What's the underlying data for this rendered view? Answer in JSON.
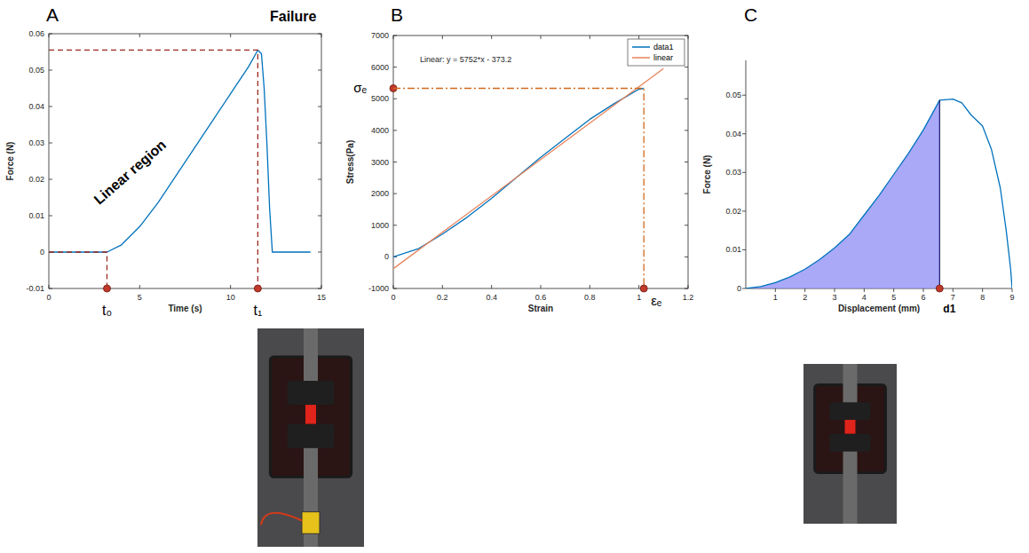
{
  "chart_data": [
    {
      "panel_label": "A",
      "type": "line",
      "x_label": "Time (s)",
      "y_label": "Force (N)",
      "xlim": [
        0,
        15
      ],
      "xticks": [
        0,
        5,
        10,
        15
      ],
      "ylim": [
        -0.01,
        0.06
      ],
      "yticks": [
        -0.01,
        0,
        0.01,
        0.02,
        0.03,
        0.04,
        0.05,
        0.06
      ],
      "series": [
        {
          "color": "#0072bd",
          "x": [
            0,
            3.2,
            4,
            5,
            6,
            7,
            8,
            9,
            10,
            11,
            11.5,
            11.7,
            11.85,
            12.0,
            12.15,
            12.3,
            14.4
          ],
          "values": [
            0,
            0,
            0.002,
            0.007,
            0.0135,
            0.021,
            0.0285,
            0.036,
            0.0435,
            0.051,
            0.0555,
            0.0545,
            0.045,
            0.03,
            0.012,
            0,
            0
          ]
        }
      ],
      "annotations": [
        {
          "text": "Linear region"
        },
        {
          "text": "Failure"
        },
        {
          "text": "t₀",
          "x": 3.2,
          "y": 0
        },
        {
          "text": "t₁",
          "x": 11.5,
          "y": 0.0555
        }
      ]
    },
    {
      "panel_label": "B",
      "type": "line",
      "x_label": "Strain",
      "y_label": "Stress(Pa)",
      "xlim": [
        0,
        1.2
      ],
      "xticks": [
        0,
        0.2,
        0.4,
        0.6,
        0.8,
        1,
        1.2
      ],
      "ylim": [
        -1000,
        7000
      ],
      "yticks": [
        -1000,
        0,
        1000,
        2000,
        3000,
        4000,
        5000,
        6000,
        7000
      ],
      "legend": "northeast",
      "series": [
        {
          "name": "data1",
          "color": "#0072bd",
          "x": [
            0,
            0.1,
            0.2,
            0.3,
            0.4,
            0.5,
            0.6,
            0.7,
            0.8,
            0.9,
            1,
            1.02
          ],
          "values": [
            0,
            250,
            720,
            1250,
            1850,
            2500,
            3150,
            3750,
            4350,
            4850,
            5300,
            5330
          ]
        },
        {
          "name": "linear",
          "color": "#e8825a",
          "x": [
            0,
            1.1
          ],
          "values": [
            -373.2,
            5954
          ]
        }
      ],
      "annotations": [
        {
          "text": "Linear: y = 5752*x - 373.2"
        },
        {
          "text": "σₑ",
          "y": 5330
        },
        {
          "text": "εₑ",
          "x": 1.02,
          "y": 5330
        }
      ]
    },
    {
      "panel_label": "C",
      "type": "line",
      "x_label": "Displacement (mm)",
      "y_label": "Force (N)",
      "xlim": [
        0,
        9
      ],
      "xticks": [
        1,
        2,
        3,
        4,
        5,
        6,
        7,
        8,
        9
      ],
      "ylim": [
        0,
        0.059
      ],
      "yticks": [
        0,
        0.01,
        0.02,
        0.03,
        0.04,
        0.05
      ],
      "series": [
        {
          "color": "#0072bd",
          "x": [
            0,
            0.5,
            1,
            1.5,
            2,
            2.5,
            3,
            3.5,
            4,
            4.5,
            5,
            5.5,
            6,
            6.55,
            7,
            7.3,
            7.6,
            8,
            8.3,
            8.6,
            8.8,
            8.95,
            9
          ],
          "values": [
            0,
            0.0005,
            0.0015,
            0.003,
            0.005,
            0.0075,
            0.0105,
            0.014,
            0.019,
            0.024,
            0.0295,
            0.035,
            0.041,
            0.0487,
            0.049,
            0.048,
            0.045,
            0.042,
            0.036,
            0.026,
            0.015,
            0.005,
            0
          ]
        }
      ],
      "annotations": [
        {
          "text": "d1",
          "x": 6.55
        }
      ]
    }
  ]
}
